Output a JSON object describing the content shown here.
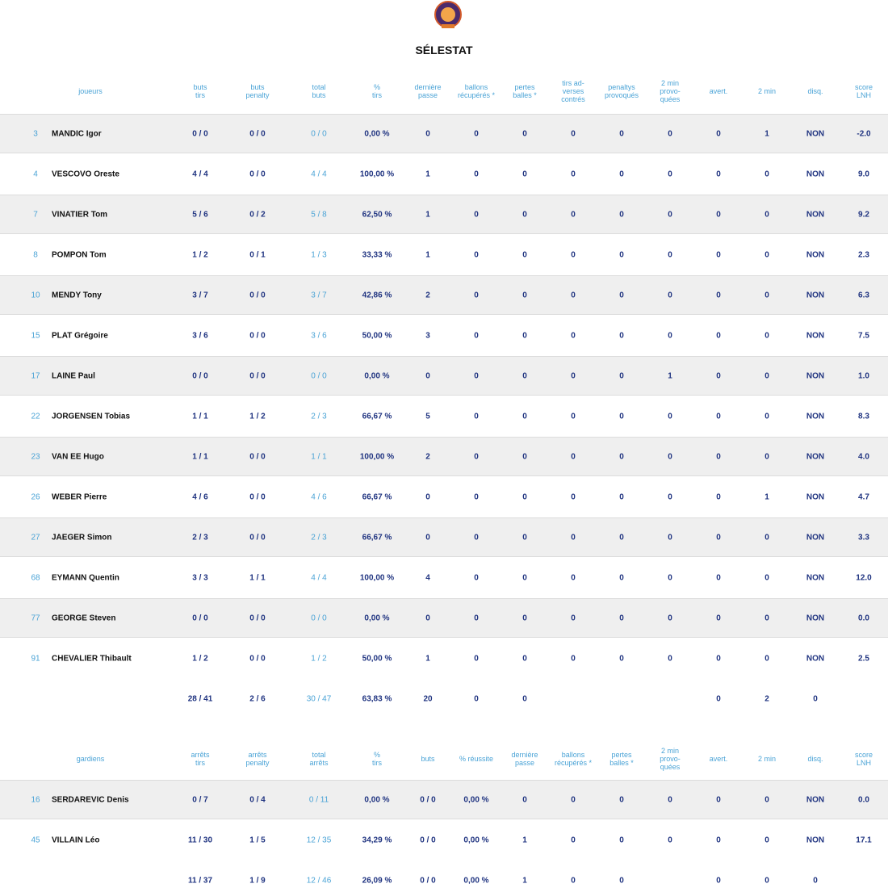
{
  "header": {
    "title": "SÉLESTAT"
  },
  "tables": [
    {
      "headers": [
        "joueurs",
        "buts\ntirs",
        "buts\npenalty",
        "total\nbuts",
        "%\ntirs",
        "dernière\npasse",
        "ballons\nrécupérés *",
        "pertes\nballes *",
        "tirs ad-\nverses\ncontrés",
        "penaltys\nprovoqués",
        "2 min\nprovo-\nquées",
        "avert.",
        "2 min",
        "disq.",
        "score\nLNH"
      ],
      "rows": [
        {
          "number": "3",
          "name": "MANDIC Igor",
          "cells": [
            "0 / 0",
            "0 / 0",
            "0 / 0",
            "0,00 %",
            "0",
            "0",
            "0",
            "0",
            "0",
            "0",
            "0",
            "1",
            "NON",
            "-2.0"
          ]
        },
        {
          "number": "4",
          "name": "VESCOVO Oreste",
          "cells": [
            "4 / 4",
            "0 / 0",
            "4 / 4",
            "100,00 %",
            "1",
            "0",
            "0",
            "0",
            "0",
            "0",
            "0",
            "0",
            "NON",
            "9.0"
          ]
        },
        {
          "number": "7",
          "name": "VINATIER Tom",
          "cells": [
            "5 / 6",
            "0 / 2",
            "5 / 8",
            "62,50 %",
            "1",
            "0",
            "0",
            "0",
            "0",
            "0",
            "0",
            "0",
            "NON",
            "9.2"
          ]
        },
        {
          "number": "8",
          "name": "POMPON Tom",
          "cells": [
            "1 / 2",
            "0 / 1",
            "1 / 3",
            "33,33 %",
            "1",
            "0",
            "0",
            "0",
            "0",
            "0",
            "0",
            "0",
            "NON",
            "2.3"
          ]
        },
        {
          "number": "10",
          "name": "MENDY Tony",
          "cells": [
            "3 / 7",
            "0 / 0",
            "3 / 7",
            "42,86 %",
            "2",
            "0",
            "0",
            "0",
            "0",
            "0",
            "0",
            "0",
            "NON",
            "6.3"
          ]
        },
        {
          "number": "15",
          "name": "PLAT Grégoire",
          "cells": [
            "3 / 6",
            "0 / 0",
            "3 / 6",
            "50,00 %",
            "3",
            "0",
            "0",
            "0",
            "0",
            "0",
            "0",
            "0",
            "NON",
            "7.5"
          ]
        },
        {
          "number": "17",
          "name": "LAINE Paul",
          "cells": [
            "0 / 0",
            "0 / 0",
            "0 / 0",
            "0,00 %",
            "0",
            "0",
            "0",
            "0",
            "0",
            "1",
            "0",
            "0",
            "NON",
            "1.0"
          ]
        },
        {
          "number": "22",
          "name": "JORGENSEN Tobias",
          "cells": [
            "1 / 1",
            "1 / 2",
            "2 / 3",
            "66,67 %",
            "5",
            "0",
            "0",
            "0",
            "0",
            "0",
            "0",
            "0",
            "NON",
            "8.3"
          ]
        },
        {
          "number": "23",
          "name": "VAN EE Hugo",
          "cells": [
            "1 / 1",
            "0 / 0",
            "1 / 1",
            "100,00 %",
            "2",
            "0",
            "0",
            "0",
            "0",
            "0",
            "0",
            "0",
            "NON",
            "4.0"
          ]
        },
        {
          "number": "26",
          "name": "WEBER Pierre",
          "cells": [
            "4 / 6",
            "0 / 0",
            "4 / 6",
            "66,67 %",
            "0",
            "0",
            "0",
            "0",
            "0",
            "0",
            "0",
            "1",
            "NON",
            "4.7"
          ]
        },
        {
          "number": "27",
          "name": "JAEGER Simon",
          "cells": [
            "2 / 3",
            "0 / 0",
            "2 / 3",
            "66,67 %",
            "0",
            "0",
            "0",
            "0",
            "0",
            "0",
            "0",
            "0",
            "NON",
            "3.3"
          ]
        },
        {
          "number": "68",
          "name": "EYMANN Quentin",
          "cells": [
            "3 / 3",
            "1 / 1",
            "4 / 4",
            "100,00 %",
            "4",
            "0",
            "0",
            "0",
            "0",
            "0",
            "0",
            "0",
            "NON",
            "12.0"
          ]
        },
        {
          "number": "77",
          "name": "GEORGE Steven",
          "cells": [
            "0 / 0",
            "0 / 0",
            "0 / 0",
            "0,00 %",
            "0",
            "0",
            "0",
            "0",
            "0",
            "0",
            "0",
            "0",
            "NON",
            "0.0"
          ]
        },
        {
          "number": "91",
          "name": "CHEVALIER Thibault",
          "cells": [
            "1 / 2",
            "0 / 0",
            "1 / 2",
            "50,00 %",
            "1",
            "0",
            "0",
            "0",
            "0",
            "0",
            "0",
            "0",
            "NON",
            "2.5"
          ]
        }
      ],
      "totals": [
        "28 / 41",
        "2 / 6",
        "30 / 47",
        "63,83 %",
        "20",
        "0",
        "0",
        null,
        null,
        null,
        "0",
        "2",
        "0",
        null
      ]
    },
    {
      "headers": [
        "gardiens",
        "arrêts\ntirs",
        "arrêts\npenalty",
        "total\narrêts",
        "%\ntirs",
        "buts",
        "% réussite",
        "dernière\npasse",
        "ballons\nrécupérés *",
        "pertes\nballes *",
        "2 min\nprovo-\nquées",
        "avert.",
        "2 min",
        "disq.",
        "score\nLNH"
      ],
      "rows": [
        {
          "number": "16",
          "name": "SERDAREVIC Denis",
          "cells": [
            "0 / 7",
            "0 / 4",
            "0 / 11",
            "0,00 %",
            "0 / 0",
            "0,00 %",
            "0",
            "0",
            "0",
            "0",
            "0",
            "0",
            "NON",
            "0.0"
          ]
        },
        {
          "number": "45",
          "name": "VILLAIN Léo",
          "cells": [
            "11 / 30",
            "1 / 5",
            "12 / 35",
            "34,29 %",
            "0 / 0",
            "0,00 %",
            "1",
            "0",
            "0",
            "0",
            "0",
            "0",
            "NON",
            "17.1"
          ]
        }
      ],
      "totals": [
        "11 / 37",
        "1 / 9",
        "12 / 46",
        "26,09 %",
        "0 / 0",
        "0,00 %",
        "1",
        "0",
        "0",
        null,
        "0",
        "0",
        "0",
        null
      ]
    }
  ]
}
